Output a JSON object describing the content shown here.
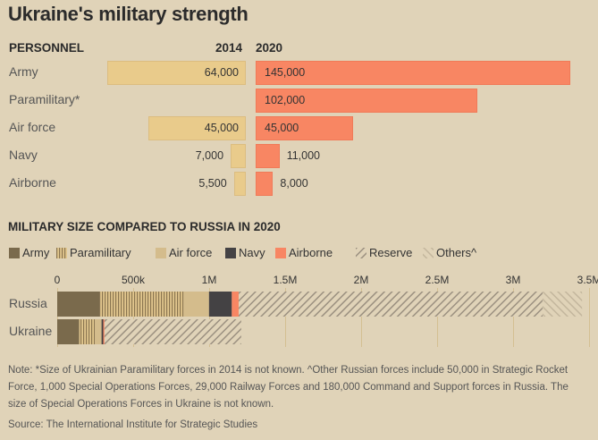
{
  "title": "Ukraine's military strength",
  "chart_data": [
    {
      "type": "bar",
      "title": "PERSONNEL",
      "orientation": "horizontal-butterfly",
      "categories": [
        "Army",
        "Paramilitary*",
        "Air force",
        "Navy",
        "Airborne"
      ],
      "series": [
        {
          "name": "2014",
          "values": [
            64000,
            null,
            45000,
            7000,
            5500
          ],
          "labels": [
            "64,000",
            "",
            "45,000",
            "7,000",
            "5,500"
          ],
          "color": "#e9cb8b"
        },
        {
          "name": "2020",
          "values": [
            145000,
            102000,
            45000,
            11000,
            8000
          ],
          "labels": [
            "145,000",
            "102,000",
            "45,000",
            "11,000",
            "8,000"
          ],
          "color": "#f88663"
        }
      ]
    },
    {
      "type": "bar",
      "stacked": true,
      "orientation": "horizontal",
      "title": "MILITARY SIZE COMPARED TO RUSSIA IN 2020",
      "categories": [
        "Russia",
        "Ukraine"
      ],
      "xlim": [
        0,
        3500000
      ],
      "xticks": [
        0,
        500000,
        1000000,
        1500000,
        2000000,
        2500000,
        3000000,
        3500000
      ],
      "xtick_labels": [
        "0",
        "500k",
        "1M",
        "1.5M",
        "2M",
        "2.5M",
        "3M",
        "3.5M"
      ],
      "grid": true,
      "legend_position": "top",
      "series": [
        {
          "name": "Army",
          "values": [
            280000,
            145000
          ],
          "color": "#7a6a4c",
          "pattern": "solid"
        },
        {
          "name": "Paramilitary",
          "values": [
            554000,
            102000
          ],
          "color": "#c9a765",
          "pattern": "vertical"
        },
        {
          "name": "Air force",
          "values": [
            165000,
            45000
          ],
          "color": "#d4bc8c",
          "pattern": "solid"
        },
        {
          "name": "Navy",
          "values": [
            150000,
            11000
          ],
          "color": "#444244",
          "pattern": "solid"
        },
        {
          "name": "Airborne",
          "values": [
            45000,
            8000
          ],
          "color": "#f88663",
          "pattern": "solid"
        },
        {
          "name": "Reserve",
          "values": [
            2000000,
            900000
          ],
          "color": "#9b9080",
          "pattern": "diagonal"
        },
        {
          "name": "Others^",
          "values": [
            260000,
            0
          ],
          "color": "#c3b69d",
          "pattern": "back-diagonal"
        }
      ]
    }
  ],
  "personnel": {
    "header": "PERSONNEL",
    "col2014": "2014",
    "col2020": "2020"
  },
  "note": "Note: *Size of Ukrainian Paramilitary forces in 2014 is not known. ^Other Russian forces include 50,000 in Strategic Rocket Force, 1,000 Special Operations Forces, 29,000 Railway Forces and 180,000 Command and Support forces in Russia. The size of Special Operations Forces in Ukraine is not known.",
  "source": "Source: The International Institute for Strategic Studies"
}
